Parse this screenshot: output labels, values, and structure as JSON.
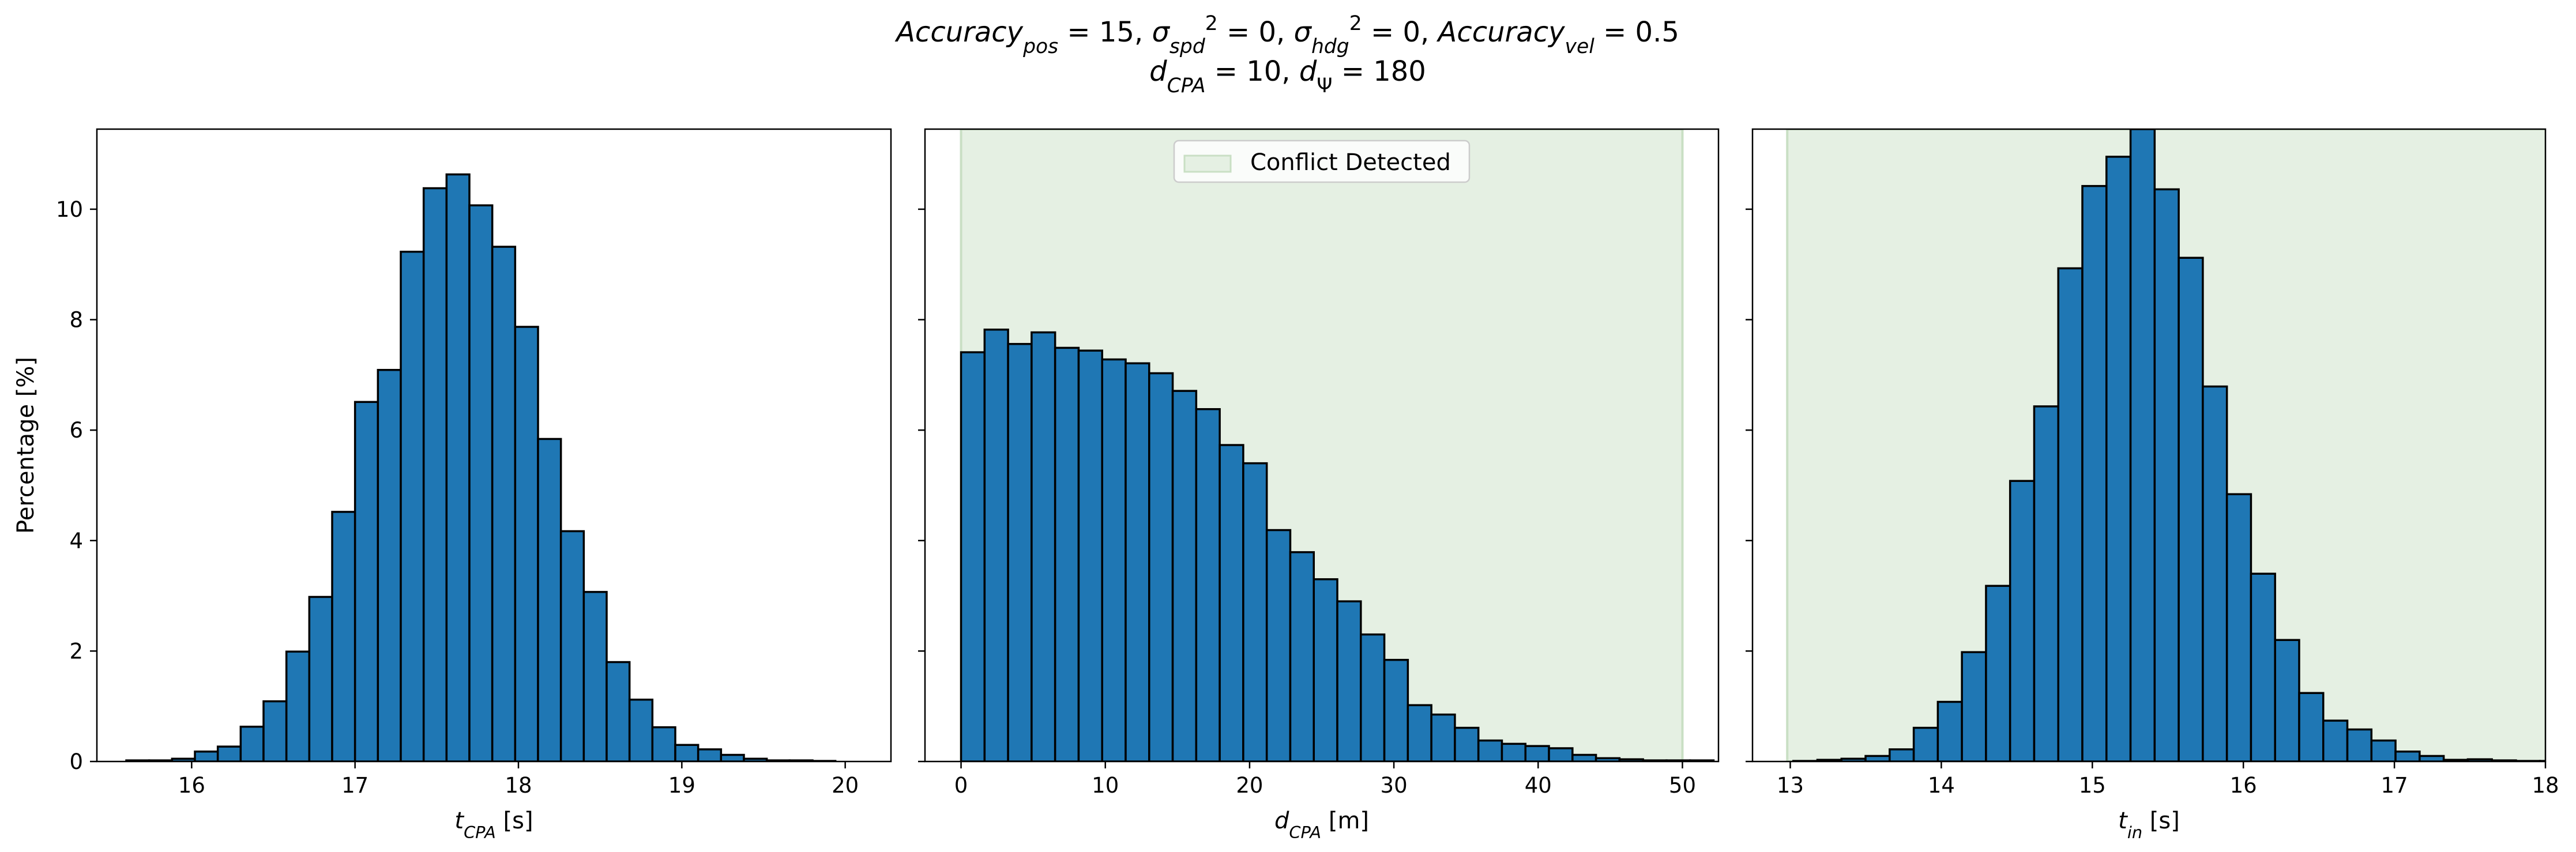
{
  "title": {
    "line1": [
      {
        "t": "Accuracy",
        "it": true
      },
      {
        "t": "pos",
        "it": true,
        "sub": true
      },
      {
        "t": " = 15, "
      },
      {
        "t": "σ",
        "it": true
      },
      {
        "t": "spd",
        "it": true,
        "sub": true
      },
      {
        "t": "2",
        "sup": true
      },
      {
        "t": " = 0, "
      },
      {
        "t": "σ",
        "it": true
      },
      {
        "t": "hdg",
        "it": true,
        "sub": true
      },
      {
        "t": "2",
        "sup": true
      },
      {
        "t": " = 0, "
      },
      {
        "t": "Accuracy",
        "it": true
      },
      {
        "t": "vel",
        "it": true,
        "sub": true
      },
      {
        "t": " = 0.5"
      }
    ],
    "line2": [
      {
        "t": "d",
        "it": true
      },
      {
        "t": "CPA",
        "it": true,
        "sub": true
      },
      {
        "t": " = 10, "
      },
      {
        "t": "d",
        "it": true
      },
      {
        "t": "Ψ",
        "sub": true
      },
      {
        "t": " = 180"
      }
    ]
  },
  "colors": {
    "bar_fill": "#1f77b4",
    "bar_edge": "#000000",
    "conflict_shade": "#e5f0e3",
    "conflict_edge": "#c9dfc4"
  },
  "legend": {
    "label": "Conflict Detected",
    "placement": "upper center"
  },
  "chart_data": [
    {
      "type": "bar",
      "subtype": "histogram",
      "ylabel": "Percentage [%]",
      "xlabel": [
        {
          "t": "t",
          "it": true
        },
        {
          "t": "CPA",
          "it": true,
          "sub": true
        },
        {
          "t": " [s]"
        }
      ],
      "xlim": [
        15.42,
        20.28
      ],
      "ylim": [
        0,
        11.45
      ],
      "xticks": [
        16,
        17,
        18,
        19,
        20
      ],
      "yticks": [
        0,
        2,
        4,
        6,
        8,
        10
      ],
      "show_ytick_labels": true,
      "bin_start": 15.6,
      "bin_width": 0.14,
      "values": [
        0.02,
        0.02,
        0.05,
        0.18,
        0.27,
        0.63,
        1.09,
        1.99,
        2.98,
        4.52,
        6.51,
        7.09,
        9.23,
        10.38,
        10.63,
        10.07,
        9.32,
        7.87,
        5.84,
        4.17,
        3.07,
        1.8,
        1.12,
        0.62,
        0.3,
        0.22,
        0.12,
        0.05,
        0.02,
        0.02,
        0.01
      ]
    },
    {
      "type": "bar",
      "subtype": "histogram",
      "xlabel": [
        {
          "t": "d",
          "it": true
        },
        {
          "t": "CPA",
          "it": true,
          "sub": true
        },
        {
          "t": " [m]"
        }
      ],
      "xlim": [
        -2.5,
        52.5
      ],
      "ylim": [
        0,
        11.45
      ],
      "xticks": [
        0,
        10,
        20,
        30,
        40,
        50
      ],
      "yticks": [
        0,
        2,
        4,
        6,
        8,
        10
      ],
      "show_ytick_labels": false,
      "shaded_region": [
        0,
        50
      ],
      "bin_start": 0,
      "bin_width": 1.63,
      "values": [
        7.41,
        7.82,
        7.56,
        7.77,
        7.49,
        7.44,
        7.28,
        7.21,
        7.03,
        6.71,
        6.38,
        5.73,
        5.4,
        4.19,
        3.79,
        3.3,
        2.9,
        2.3,
        1.84,
        1.02,
        0.85,
        0.61,
        0.38,
        0.32,
        0.28,
        0.24,
        0.12,
        0.06,
        0.04,
        0.02,
        0.02,
        0.02
      ]
    },
    {
      "type": "bar",
      "subtype": "histogram",
      "xlabel": [
        {
          "t": "t",
          "it": true
        },
        {
          "t": "in",
          "it": true,
          "sub": true
        },
        {
          "t": " [s]"
        }
      ],
      "xlim": [
        12.75,
        18.0
      ],
      "ylim": [
        0,
        11.45
      ],
      "xticks": [
        13,
        14,
        15,
        16,
        17,
        18
      ],
      "yticks": [
        0,
        2,
        4,
        6,
        8,
        10
      ],
      "show_ytick_labels": false,
      "shaded_region": [
        12.98,
        20
      ],
      "bin_start": 13.02,
      "bin_width": 0.1595,
      "values": [
        0.01,
        0.03,
        0.05,
        0.1,
        0.22,
        0.61,
        1.08,
        1.98,
        3.18,
        5.08,
        6.43,
        8.93,
        10.42,
        10.95,
        11.45,
        10.36,
        9.12,
        6.79,
        4.84,
        3.4,
        2.2,
        1.24,
        0.74,
        0.58,
        0.38,
        0.18,
        0.1,
        0.03,
        0.04,
        0.02,
        0.01,
        0.01
      ]
    }
  ]
}
